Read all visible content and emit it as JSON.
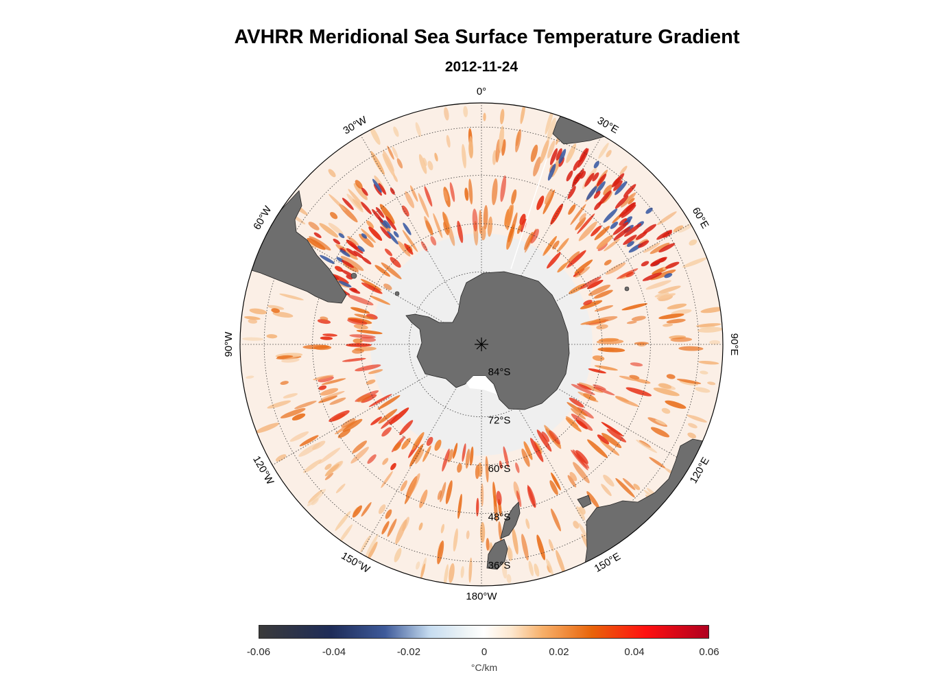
{
  "title": "AVHRR Meridional Sea Surface Temperature Gradient",
  "subtitle": "2012-11-24",
  "longitude_labels": {
    "lon_0": "0°",
    "lon_30e": "30°E",
    "lon_60e": "60°E",
    "lon_90e": "90°E",
    "lon_120e": "120°E",
    "lon_150e": "150°E",
    "lon_180w": "180°W",
    "lon_150w": "150°W",
    "lon_120w": "120°W",
    "lon_90w": "90°W",
    "lon_60w": "60°W",
    "lon_30w": "30°W"
  },
  "latitude_labels": {
    "lat_84s": "84°S",
    "lat_72s": "72°S",
    "lat_60s": "60°S",
    "lat_48s": "48°S",
    "lat_36s": "36°S"
  },
  "colorbar": {
    "ticks": [
      "-0.06",
      "-0.04",
      "-0.02",
      "0",
      "0.02",
      "0.04",
      "0.06"
    ],
    "unit": "°C/km",
    "range": [
      -0.06,
      0.06
    ]
  },
  "colors": {
    "land": "#6e6e6e",
    "sea_ice": "#efefef",
    "ocean_bg": "#fbefe6",
    "front_strong": "#e62a10",
    "front_medium": "#e9701e",
    "negative": "#3355a0"
  }
}
